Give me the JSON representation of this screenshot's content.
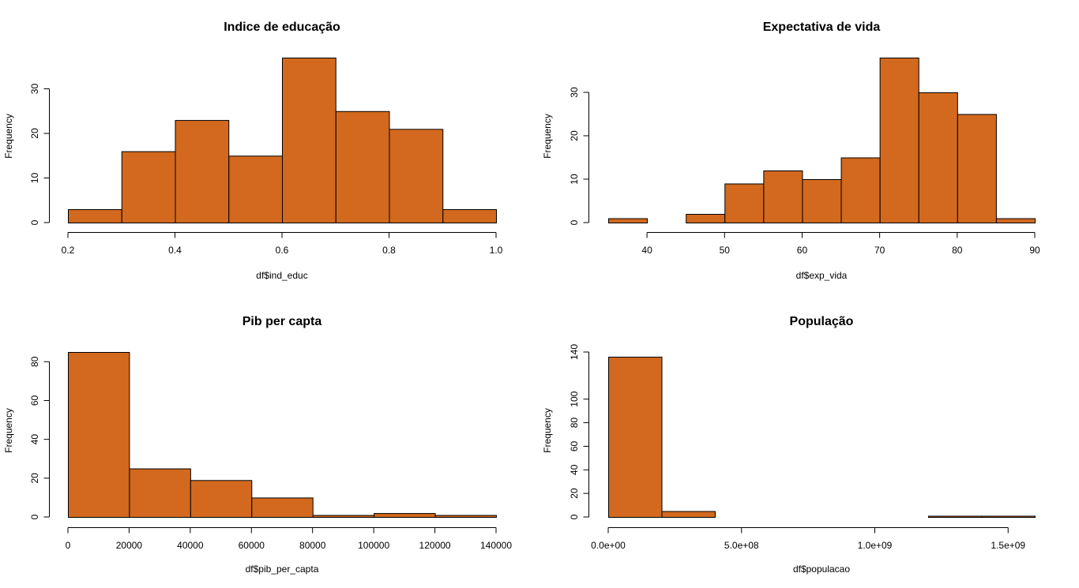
{
  "chart_data": [
    {
      "type": "bar",
      "title": "Indice de educação",
      "xlabel": "df$ind_educ",
      "ylabel": "Frequency",
      "bins": [
        [
          0.2,
          0.3
        ],
        [
          0.3,
          0.4
        ],
        [
          0.4,
          0.5
        ],
        [
          0.5,
          0.6
        ],
        [
          0.6,
          0.7
        ],
        [
          0.7,
          0.8
        ],
        [
          0.8,
          0.9
        ],
        [
          0.9,
          1.0
        ]
      ],
      "values": [
        3,
        16,
        23,
        15,
        37,
        25,
        21,
        3
      ],
      "xlim": [
        0.2,
        1.0
      ],
      "ylim": [
        0,
        37
      ],
      "xticks": [
        0.2,
        0.4,
        0.6,
        0.8,
        1.0
      ],
      "xtick_labels": [
        "0.2",
        "0.4",
        "0.6",
        "0.8",
        "1.0"
      ],
      "yticks": [
        0,
        10,
        20,
        30
      ],
      "ytick_labels": [
        "0",
        "10",
        "20",
        "30"
      ],
      "color": "#d2691e"
    },
    {
      "type": "bar",
      "title": "Expectativa de vida",
      "xlabel": "df$exp_vida",
      "ylabel": "Frequency",
      "bins": [
        [
          35,
          40
        ],
        [
          40,
          45
        ],
        [
          45,
          50
        ],
        [
          50,
          55
        ],
        [
          55,
          60
        ],
        [
          60,
          65
        ],
        [
          65,
          70
        ],
        [
          70,
          75
        ],
        [
          75,
          80
        ],
        [
          80,
          85
        ],
        [
          85,
          90
        ]
      ],
      "values": [
        1,
        0,
        2,
        9,
        12,
        10,
        15,
        38,
        30,
        25,
        1
      ],
      "xlim": [
        35,
        90
      ],
      "ylim": [
        0,
        38
      ],
      "xticks": [
        40,
        50,
        60,
        70,
        80,
        90
      ],
      "xtick_labels": [
        "40",
        "50",
        "60",
        "70",
        "80",
        "90"
      ],
      "yticks": [
        0,
        10,
        20,
        30
      ],
      "ytick_labels": [
        "0",
        "10",
        "20",
        "30"
      ],
      "color": "#d2691e"
    },
    {
      "type": "bar",
      "title": "Pib per capta",
      "xlabel": "df$pib_per_capta",
      "ylabel": "Frequency",
      "bins": [
        [
          0,
          20000
        ],
        [
          20000,
          40000
        ],
        [
          40000,
          60000
        ],
        [
          60000,
          80000
        ],
        [
          80000,
          100000
        ],
        [
          100000,
          120000
        ],
        [
          120000,
          140000
        ]
      ],
      "values": [
        85,
        25,
        19,
        10,
        1,
        2,
        1
      ],
      "xlim": [
        0,
        140000
      ],
      "ylim": [
        0,
        85
      ],
      "xticks": [
        0,
        20000,
        40000,
        60000,
        80000,
        100000,
        120000,
        140000
      ],
      "xtick_labels": [
        "0",
        "20000",
        "40000",
        "60000",
        "80000",
        "100000",
        "120000",
        "140000"
      ],
      "yticks": [
        0,
        20,
        40,
        60,
        80
      ],
      "ytick_labels": [
        "0",
        "20",
        "40",
        "60",
        "80"
      ],
      "color": "#d2691e"
    },
    {
      "type": "bar",
      "title": "População",
      "xlabel": "df$populacao",
      "ylabel": "Frequency",
      "bins": [
        [
          0,
          200000000
        ],
        [
          200000000,
          400000000
        ],
        [
          400000000,
          600000000
        ],
        [
          600000000,
          800000000
        ],
        [
          800000000,
          1000000000
        ],
        [
          1000000000,
          1200000000
        ],
        [
          1200000000,
          1400000000
        ],
        [
          1400000000,
          1600000000
        ]
      ],
      "values": [
        136,
        5,
        0,
        0,
        0,
        0,
        1,
        1
      ],
      "xlim": [
        0,
        1600000000
      ],
      "ylim": [
        0,
        140
      ],
      "xticks": [
        0,
        500000000,
        1000000000,
        1500000000
      ],
      "xtick_labels": [
        "0.0e+00",
        "5.0e+08",
        "1.0e+09",
        "1.5e+09"
      ],
      "yticks": [
        0,
        20,
        40,
        60,
        80,
        100,
        140
      ],
      "ytick_labels": [
        "0",
        "20",
        "40",
        "60",
        "80",
        "100",
        "140"
      ],
      "color": "#d2691e"
    }
  ]
}
